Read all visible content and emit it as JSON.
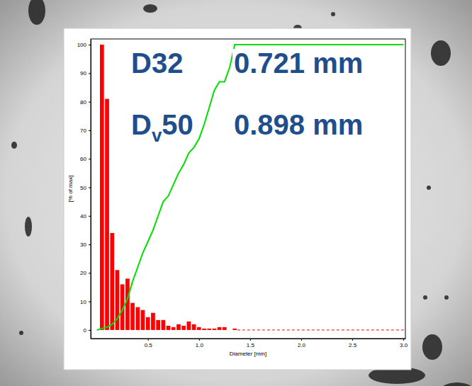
{
  "chart_data": {
    "type": "histogram",
    "xlabel": "Diameter [mm]",
    "ylabel": "[% of max]",
    "color": "#ff0000",
    "bins": [
      0.025,
      0.075,
      0.125,
      0.175,
      0.225,
      0.275,
      0.325,
      0.375,
      0.425,
      0.475,
      0.525,
      0.575,
      0.625,
      0.675,
      0.725,
      0.775,
      0.825,
      0.875,
      0.925,
      0.975,
      1.025,
      1.075,
      1.125,
      1.175,
      1.225,
      1.275,
      1.325,
      1.375
    ],
    "values": [
      100,
      81,
      34,
      21,
      16,
      18,
      9.5,
      8,
      7,
      4.5,
      6,
      3.5,
      3.5,
      1.5,
      1,
      2,
      1.5,
      3,
      2,
      1,
      0.5,
      0.5,
      0.5,
      1,
      1,
      0,
      0.5
    ],
    "series": [
      {
        "type": "line",
        "color": "#00e000",
        "x": [
          0,
          0.05,
          0.1,
          0.15,
          0.2,
          0.25,
          0.3,
          0.35,
          0.4,
          0.45,
          0.5,
          0.55,
          0.6,
          0.65,
          0.7,
          0.75,
          0.8,
          0.85,
          0.9,
          0.95,
          1.0,
          1.05,
          1.1,
          1.15,
          1.2,
          1.25,
          1.3,
          1.35,
          3.0
        ],
        "values": [
          0,
          0.5,
          1,
          2,
          4,
          7,
          11,
          17,
          22,
          27,
          31,
          35,
          40,
          45,
          47,
          51,
          55,
          58,
          62,
          64,
          67,
          72,
          78,
          84,
          87,
          87,
          92,
          100,
          100
        ]
      }
    ],
    "xlim": [
      -0.06,
      3.02
    ],
    "ylim": [
      -3,
      102
    ],
    "xticks": [
      0.5,
      {
        "value": 1,
        "label": "1.0"
      },
      1.5,
      {
        "value": 2,
        "label": "2.0"
      },
      2.5,
      {
        "value": 3,
        "label": "3.0"
      }
    ],
    "yticks": [
      0,
      10,
      20,
      30,
      40,
      50,
      60,
      70,
      80,
      90,
      100
    ],
    "grid": false,
    "annotations": [
      {
        "label": "D32",
        "text": "0.721 mm"
      },
      {
        "label": {
          "main": "D",
          "sub": "v",
          "rest": "50"
        },
        "text": "0.898 mm"
      }
    ]
  }
}
